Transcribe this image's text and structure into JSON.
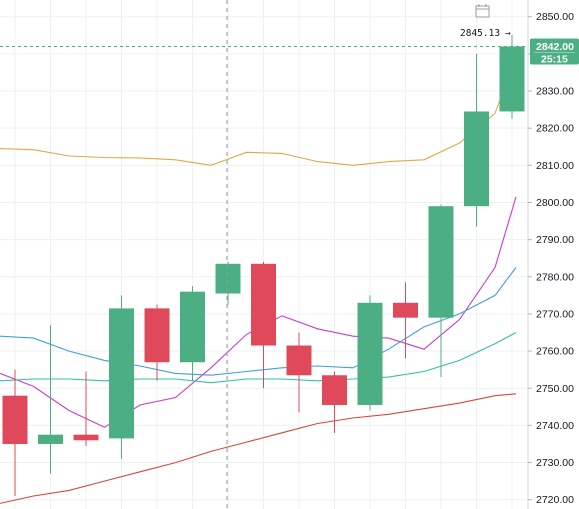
{
  "chart_data": {
    "type": "candlestick",
    "y_axis": {
      "ticks": [
        "2720.00",
        "2730.00",
        "2740.00",
        "2750.00",
        "2760.00",
        "2770.00",
        "2780.00",
        "2790.00",
        "2800.00",
        "2810.00",
        "2820.00",
        "2830.00",
        "2840.00",
        "2850.00"
      ],
      "range": [
        2717.5,
        2854.5
      ]
    },
    "current_price_label": "2842.00",
    "countdown_label": "25:15",
    "high_label": "2845.13",
    "high_arrow": "→",
    "colors": {
      "up": "#4caf83",
      "down": "#e0495a",
      "grid": "#eef0f3",
      "axis_bg": "#ffffff"
    },
    "candles": [
      {
        "open": 2748.0,
        "high": 2755.0,
        "low": 2721.0,
        "close": 2735.0
      },
      {
        "open": 2735.0,
        "high": 2767.0,
        "low": 2727.0,
        "close": 2737.5
      },
      {
        "open": 2737.5,
        "high": 2754.5,
        "low": 2734.5,
        "close": 2736.0
      },
      {
        "open": 2736.5,
        "high": 2775.0,
        "low": 2731.0,
        "close": 2771.5
      },
      {
        "open": 2771.5,
        "high": 2772.5,
        "low": 2752.0,
        "close": 2757.0
      },
      {
        "open": 2757.0,
        "high": 2777.5,
        "low": 2752.0,
        "close": 2776.0
      },
      {
        "open": 2775.5,
        "high": 2784.0,
        "low": 2772.5,
        "close": 2783.5
      },
      {
        "open": 2783.5,
        "high": 2784.0,
        "low": 2750.0,
        "close": 2761.5
      },
      {
        "open": 2761.5,
        "high": 2765.0,
        "low": 2743.5,
        "close": 2753.5
      },
      {
        "open": 2753.5,
        "high": 2754.5,
        "low": 2738.0,
        "close": 2745.5
      },
      {
        "open": 2745.5,
        "high": 2775.0,
        "low": 2744.0,
        "close": 2773.0
      },
      {
        "open": 2773.0,
        "high": 2778.5,
        "low": 2758.0,
        "close": 2769.0
      },
      {
        "open": 2769.0,
        "high": 2799.5,
        "low": 2753.0,
        "close": 2799.0
      },
      {
        "open": 2799.0,
        "high": 2840.0,
        "low": 2793.5,
        "close": 2824.5
      },
      {
        "open": 2824.5,
        "high": 2845.13,
        "low": 2822.5,
        "close": 2842.0
      }
    ],
    "series": [
      {
        "color": "#e2a846",
        "values": [
          2814.5,
          2814.2,
          2812.5,
          2812.1,
          2812.0,
          2811.5,
          2810.0,
          2813.5,
          2813.2,
          2811.0,
          2810.0,
          2811.0,
          2811.5,
          2816.0,
          2824.0,
          2839.0
        ]
      },
      {
        "color": "#c83ecd",
        "values": [
          2754.0,
          2750.5,
          2744.0,
          2739.5,
          2745.5,
          2747.5,
          2755.5,
          2764.5,
          2769.5,
          2766.0,
          2764.0,
          2763.5,
          2760.5,
          2768.5,
          2782.5,
          2801.5
        ]
      },
      {
        "color": "#3fa1d6",
        "values": [
          2764.0,
          2763.5,
          2760.0,
          2757.5,
          2756.0,
          2754.0,
          2753.5,
          2754.5,
          2755.5,
          2756.0,
          2755.5,
          2760.5,
          2766.5,
          2770.0,
          2775.0,
          2782.5
        ]
      },
      {
        "color": "#2fc3a2",
        "values": [
          2752.0,
          2752.5,
          2752.5,
          2752.0,
          2752.5,
          2752.5,
          2751.5,
          2752.5,
          2752.5,
          2752.0,
          2752.5,
          2753.0,
          2754.5,
          2757.5,
          2762.0,
          2765.0
        ]
      },
      {
        "color": "#d6473c",
        "values": [
          2719.0,
          2721.0,
          2722.5,
          2725.0,
          2727.5,
          2730.0,
          2733.0,
          2735.5,
          2738.0,
          2740.5,
          2742.0,
          2743.0,
          2744.5,
          2746.0,
          2748.0,
          2748.5
        ]
      }
    ]
  },
  "toolbar": {
    "icon": "calendar-icon"
  }
}
